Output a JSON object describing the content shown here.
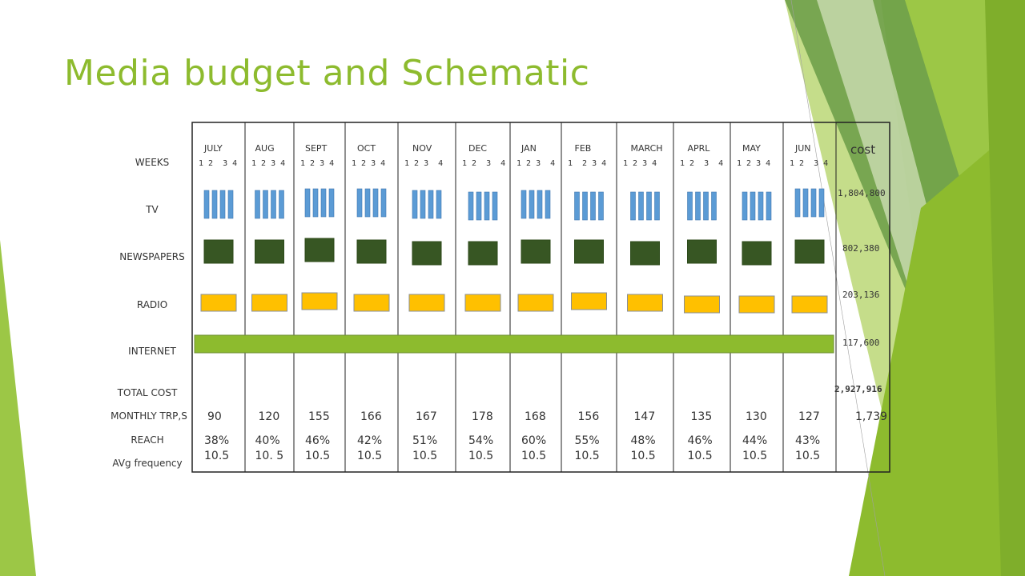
{
  "title": "Media budget and Schematic",
  "colors": {
    "title": "#8dbb2e",
    "tv": "#5b9bd5",
    "newspaper": "#375623",
    "radio": "#ffc000",
    "internet": "#8dbb2e"
  },
  "row_labels": {
    "weeks": "WEEKS",
    "tv": "TV",
    "newspapers": "NEWSPAPERS",
    "radio": "RADIO",
    "internet": "INTERNET",
    "total_cost": "TOTAL COST",
    "monthly_trps": "MONTHLY TRP,S",
    "reach": "REACH",
    "avg_frequency": "AVg frequency"
  },
  "months": [
    {
      "name": "JULY",
      "weeks": "1 2  3 4"
    },
    {
      "name": "AUG",
      "weeks": "1 2 3 4"
    },
    {
      "name": "SEPT",
      "weeks": "1 2 3 4"
    },
    {
      "name": "OCT",
      "weeks": "1 2 3 4"
    },
    {
      "name": "NOV",
      "weeks": "1 2 3  4"
    },
    {
      "name": "DEC",
      "weeks": "1 2  3  4"
    },
    {
      "name": "JAN",
      "weeks": "1 2 3  4"
    },
    {
      "name": "FEB",
      "weeks": "1  2 3 4"
    },
    {
      "name": "MARCH",
      "weeks": "1 2 3 4"
    },
    {
      "name": "APRL",
      "weeks": "1 2  3  4"
    },
    {
      "name": "MAY",
      "weeks": "1 2 3 4"
    },
    {
      "name": "JUN",
      "weeks": "1 2  3 4"
    }
  ],
  "cost_header": "cost",
  "costs": {
    "tv": "1,804,800",
    "newspapers": "802,380",
    "radio": "203,136",
    "internet": "117,600",
    "total": "2,927,916"
  },
  "monthly_trps": [
    "90",
    "120",
    "155",
    "166",
    "167",
    "178",
    "168",
    "156",
    "147",
    "135",
    "130",
    "127"
  ],
  "monthly_trps_total": "1,739",
  "reach": [
    "38%",
    "40%",
    "46%",
    "42%",
    "51%",
    "54%",
    "60%",
    "55%",
    "48%",
    "46%",
    "44%",
    "43%"
  ],
  "avg_frequency": [
    "10.5",
    "10. 5",
    "10.5",
    "10.5",
    "10.5",
    "10.5",
    "10.5",
    "10.5",
    "10.5",
    "10.5",
    "10.5",
    "10.5"
  ]
}
